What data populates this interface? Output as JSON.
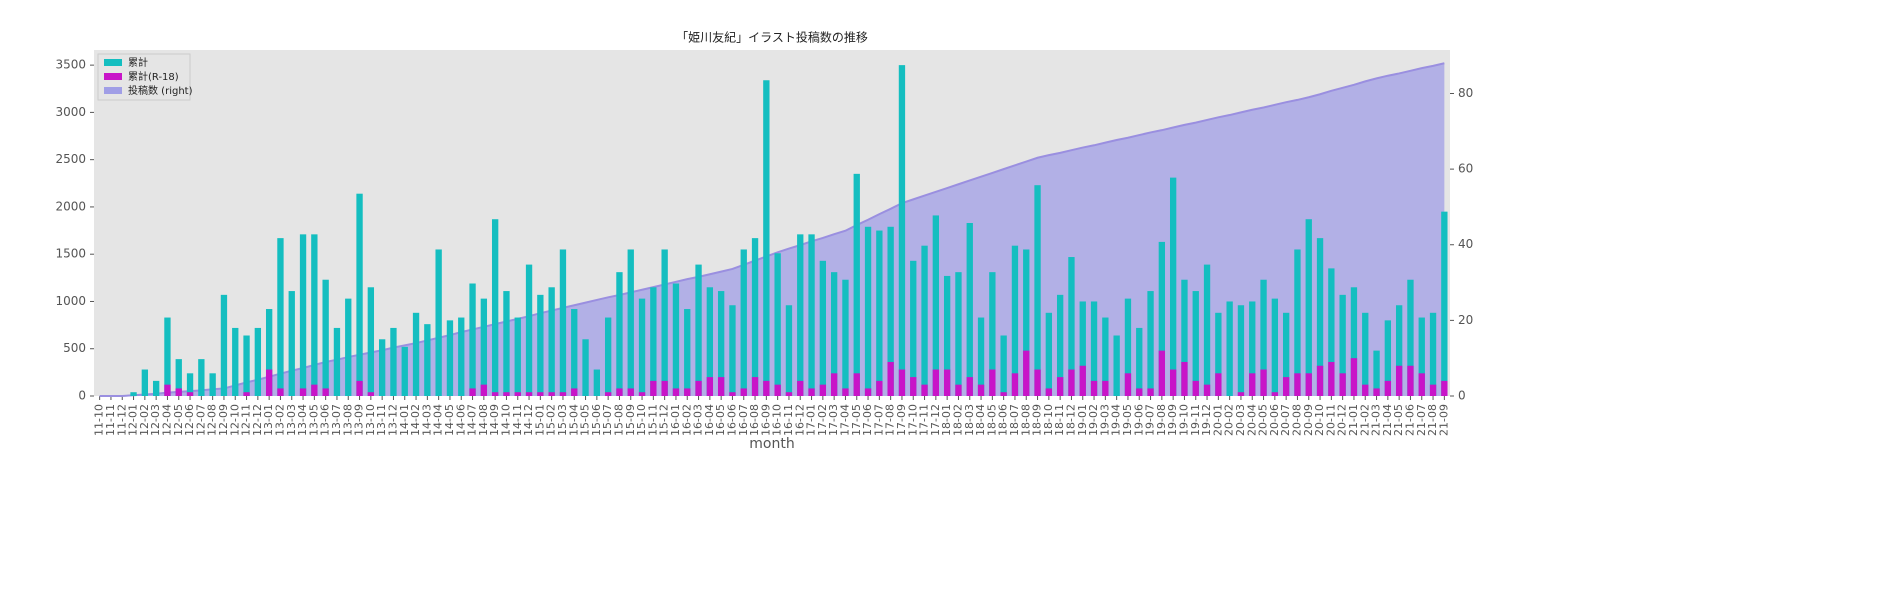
{
  "chart_data": {
    "type": "bar",
    "title": "「姫川友紀」イラスト投稿数の推移",
    "xlabel": "month",
    "categories": [
      "11-10",
      "11-11",
      "11-12",
      "12-01",
      "12-02",
      "12-03",
      "12-04",
      "12-05",
      "12-06",
      "12-07",
      "12-08",
      "12-09",
      "12-10",
      "12-11",
      "12-12",
      "13-01",
      "13-02",
      "13-03",
      "13-04",
      "13-05",
      "13-06",
      "13-07",
      "13-08",
      "13-09",
      "13-10",
      "13-11",
      "13-12",
      "14-01",
      "14-02",
      "14-03",
      "14-04",
      "14-05",
      "14-06",
      "14-07",
      "14-08",
      "14-09",
      "14-10",
      "14-11",
      "14-12",
      "15-01",
      "15-02",
      "15-03",
      "15-04",
      "15-05",
      "15-06",
      "15-07",
      "15-08",
      "15-09",
      "15-10",
      "15-11",
      "15-12",
      "16-01",
      "16-02",
      "16-03",
      "16-04",
      "16-05",
      "16-06",
      "16-07",
      "16-08",
      "16-09",
      "16-10",
      "16-11",
      "16-12",
      "17-01",
      "17-02",
      "17-03",
      "17-04",
      "17-05",
      "17-06",
      "17-07",
      "17-08",
      "17-09",
      "17-10",
      "17-11",
      "17-12",
      "18-01",
      "18-02",
      "18-03",
      "18-04",
      "18-05",
      "18-06",
      "18-07",
      "18-08",
      "18-09",
      "18-10",
      "18-11",
      "18-12",
      "19-01",
      "19-02",
      "19-03",
      "19-04",
      "19-05",
      "19-06",
      "19-07",
      "19-08",
      "19-09",
      "19-10",
      "19-11",
      "19-12",
      "20-01",
      "20-02",
      "20-03",
      "20-04",
      "20-05",
      "20-06",
      "20-07",
      "20-08",
      "20-09",
      "20-10",
      "20-11",
      "20-12",
      "21-01",
      "21-02",
      "21-03",
      "21-04",
      "21-05",
      "21-06",
      "21-07",
      "21-08",
      "21-09"
    ],
    "series": [
      {
        "name": "投稿数 (right)",
        "color": "#a09ee6",
        "kind": "area",
        "axis": "y2",
        "values": [
          0,
          0,
          0,
          0.2,
          0.4,
          0.6,
          0.9,
          1.1,
          1.3,
          1.5,
          1.8,
          2,
          2.8,
          3.6,
          4.3,
          5.1,
          5.9,
          6.7,
          7.4,
          8.2,
          9,
          9.6,
          10.3,
          10.9,
          11.5,
          12.1,
          12.8,
          13.4,
          14,
          14.7,
          15.4,
          16.1,
          16.9,
          17.6,
          18.3,
          19,
          19.7,
          20.4,
          21.1,
          21.9,
          22.6,
          23.3,
          24,
          24.7,
          25.4,
          26.1,
          26.7,
          27.4,
          28.1,
          28.8,
          29.5,
          30.2,
          30.9,
          31.5,
          32.2,
          32.9,
          33.6,
          34.7,
          35.8,
          36.9,
          38,
          39,
          39.9,
          40.9,
          41.8,
          42.8,
          43.7,
          45.2,
          46.6,
          48.1,
          49.5,
          51,
          52,
          53,
          54,
          55,
          56,
          57,
          58,
          59,
          60,
          61,
          62,
          63,
          63.7,
          64.3,
          65,
          65.7,
          66.3,
          67,
          67.7,
          68.3,
          69,
          69.7,
          70.3,
          71,
          71.7,
          72.3,
          73,
          73.7,
          74.3,
          75,
          75.7,
          76.3,
          77,
          77.7,
          78.3,
          79,
          79.8,
          80.7,
          81.5,
          82.3,
          83.2,
          84,
          84.7,
          85.3,
          86,
          86.7,
          87.3,
          88
        ]
      },
      {
        "name": "累計",
        "color": "#14bec0",
        "kind": "bar",
        "values": [
          0,
          0,
          0,
          40,
          280,
          160,
          830,
          390,
          240,
          390,
          240,
          1070,
          720,
          640,
          720,
          920,
          1670,
          1110,
          1710,
          1710,
          1230,
          720,
          1030,
          2140,
          1150,
          600,
          720,
          520,
          880,
          760,
          1550,
          800,
          830,
          1190,
          1030,
          1870,
          1110,
          830,
          1390,
          1070,
          1150,
          1550,
          920,
          600,
          280,
          830,
          1310,
          1550,
          1030,
          1150,
          1550,
          1190,
          920,
          1390,
          1150,
          1110,
          960,
          1550,
          1670,
          3340,
          1510,
          960,
          1710,
          1710,
          1430,
          1310,
          1230,
          2350,
          1790,
          1750,
          1790,
          3500,
          1430,
          1590,
          1910,
          1270,
          1310,
          1830,
          830,
          1310,
          640,
          1590,
          1550,
          2230,
          880,
          1070,
          1470,
          1000,
          1000,
          830,
          640,
          1030,
          720,
          1110,
          1630,
          2310,
          1230,
          1110,
          1390,
          880,
          1000,
          960,
          1000,
          1230,
          1030,
          880,
          1550,
          1870,
          1670,
          1350,
          1070,
          1150,
          880,
          480,
          800,
          960,
          1230,
          830,
          880,
          1950
        ]
      },
      {
        "name": "累計(R-18)",
        "color": "#c814c8",
        "kind": "bar",
        "values": [
          0,
          0,
          0,
          0,
          0,
          0,
          120,
          80,
          40,
          0,
          0,
          0,
          0,
          40,
          0,
          280,
          80,
          0,
          80,
          120,
          80,
          0,
          0,
          160,
          40,
          0,
          0,
          0,
          0,
          0,
          0,
          0,
          0,
          80,
          120,
          40,
          40,
          40,
          40,
          40,
          40,
          40,
          80,
          0,
          0,
          40,
          80,
          80,
          40,
          160,
          160,
          80,
          80,
          160,
          200,
          200,
          40,
          80,
          200,
          160,
          120,
          40,
          160,
          80,
          120,
          240,
          80,
          240,
          80,
          160,
          360,
          280,
          200,
          120,
          280,
          280,
          120,
          200,
          120,
          280,
          40,
          240,
          480,
          280,
          80,
          200,
          280,
          320,
          160,
          160,
          0,
          240,
          80,
          80,
          480,
          280,
          360,
          160,
          120,
          240,
          0,
          40,
          240,
          280,
          40,
          200,
          240,
          240,
          320,
          360,
          240,
          400,
          120,
          80,
          160,
          320,
          320,
          240,
          120,
          160
        ]
      }
    ],
    "ylim": [
      0,
      3660
    ],
    "yticks": [
      0,
      500,
      1000,
      1500,
      2000,
      2500,
      3000,
      3500
    ],
    "y2lim": [
      0,
      91.5
    ],
    "y2ticks": [
      0,
      20,
      40,
      60,
      80
    ],
    "legend": "upper left"
  }
}
